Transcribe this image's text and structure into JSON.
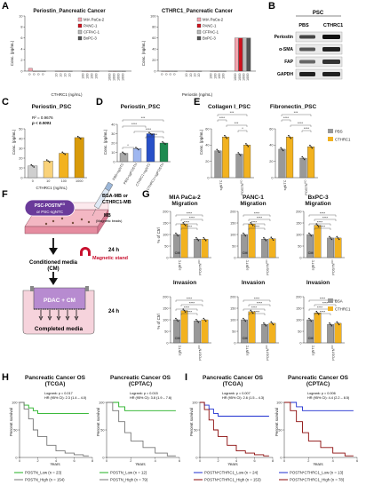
{
  "panel_labels": {
    "A": "A",
    "B": "B",
    "C": "C",
    "D": "D",
    "E": "E",
    "F": "F",
    "G": "G",
    "H": "H",
    "I": "I"
  },
  "A": {
    "left": {
      "title": "Periostin_Pancreatic Cancer",
      "xlabel": "CTHRC1 (ng/mL)",
      "ylabel": "Conc. (pg/mL)"
    },
    "right": {
      "title": "CTHRC1_Pancreatic Cancer",
      "xlabel": "Periostin (ng/mL)",
      "ylabel": "Conc. (ng/mL)"
    },
    "legend": [
      "MIA PaCa-2",
      "PANC-1",
      "CFPAC-1",
      "BxPC-3"
    ],
    "colors": [
      "#f4a6b0",
      "#d0111d",
      "#bbbbbb",
      "#555555"
    ]
  },
  "B": {
    "header": "PSC",
    "columns": [
      "PBS",
      "CTHRC1"
    ],
    "rows": [
      "Periostin",
      "α-SMA",
      "FAP",
      "GAPDH"
    ]
  },
  "C": {
    "title": "Periostin_PSC",
    "ylabel": "Conc. (pg/mL)",
    "xlabel": "CTHRC1 (ng/mL)",
    "r2": "R² = 0.9676",
    "p": "p < 0.0001"
  },
  "D": {
    "title": "Periostin_PSC",
    "ylabel": "Conc. (pg/mL)",
    "categories": [
      "PBS+sgNTC",
      "PBS+sgPOSTN",
      "CTHRC1+sgNTC",
      "CTHRC1+sgPOSTN"
    ],
    "colors": [
      "#a9a9a9",
      "#9fb7f0",
      "#2850c8",
      "#1e8a50"
    ]
  },
  "E": {
    "left_title": "Collagen I_PSC",
    "right_title": "Fibronectin_PSC",
    "ylabel": "Conc. (pg/mL)",
    "categories": [
      "sgNTC",
      "POSTN"
    ],
    "legend": [
      "PBS",
      "CTHRC1"
    ],
    "colors": [
      "#999999",
      "#f2b21f"
    ]
  },
  "F": {
    "psc_label": "PSC-POSTN",
    "psc_label2": "or PSC-sgNTC",
    "ko": "KO",
    "bsa": "BSA-MB or",
    "cthrc1": "CTHRC1-MB",
    "mb": "MB",
    "mb2": "(Magnetic beads)",
    "h1": "24 h",
    "magnet": "Magnetic stand",
    "cm": "Conditioned media",
    "cm2": "(CM)",
    "pdac": "PDAC + CM",
    "completed": "Completed media",
    "h2": "24 h"
  },
  "G": {
    "migration_titles": [
      "MIA PaCa-2\nMigration",
      "PANC-1\nMigration",
      "BxPC-3\nMigration"
    ],
    "titles_l1": [
      "MIA PaCa-2",
      "PANC-1",
      "BxPC-3"
    ],
    "titles_l2": [
      "Migration",
      "Migration",
      "Migration"
    ],
    "invasion_title": "Invasion",
    "ylabel": "% of Ctrl",
    "categories": [
      "sgNTC",
      "POSTN"
    ],
    "cm": "CM",
    "legend": [
      "BSA",
      "CTHRC1"
    ],
    "colors": [
      "#999999",
      "#f2b21f"
    ]
  },
  "H": {
    "left": {
      "title": "Pancreatic Cancer OS",
      "subtitle": "(TCGA)",
      "logrank": "Logrank: p = 0.017",
      "hr": "HR (95% CI): 2.3 (1.4 – 4.0)",
      "low": "POSTN_Low (n = 23)",
      "high": "POSTN_High (n = 154)"
    },
    "right": {
      "title": "Pancreatic Cancer OS",
      "subtitle": "(CPTAC)",
      "logrank": "Logrank: p = 0.015",
      "hr": "HR (95% CI): 3.8 (1.9 – 7.6)",
      "low": "POSTN_Low (n = 12)",
      "high": "POSTN_High (n = 79)"
    },
    "ylabel": "Percent survival",
    "xlabel": "Years",
    "colors": {
      "low": "#22b022",
      "high": "#777777"
    }
  },
  "I": {
    "left": {
      "title": "Pancreatic Cancer OS",
      "subtitle": "(TCGA)",
      "logrank": "Logrank: p = 0.007",
      "hr": "HR (95% CI): 2.6 (1.5 – 4.3)",
      "low": "POSTN*CTHRC1_Low (n = 24)",
      "high": "POSTN*CTHRC1_High (n = 153)"
    },
    "right": {
      "title": "Pancreatic Cancer OS",
      "subtitle": "(CPTAC)",
      "logrank": "Logrank: p = 0.006",
      "hr": "HR (95% CI): 4.4 (2.2 – 8.5)",
      "low": "POSTN*CTHRC1_Low (n = 13)",
      "high": "POSTN*CTHRC1_High (n = 78)"
    },
    "ylabel": "Percent survival",
    "xlabel": "Years",
    "colors": {
      "low": "#1f2fd0",
      "high": "#8b0a0a"
    }
  },
  "chart_data": [
    {
      "type": "bar",
      "panel": "A-left",
      "categories": [
        "0",
        "10",
        "100",
        "1000"
      ],
      "series": [
        {
          "name": "MIA PaCa-2",
          "values": [
            0.5,
            0,
            0,
            0
          ]
        },
        {
          "name": "PANC-1",
          "values": [
            0,
            0,
            0,
            0
          ]
        },
        {
          "name": "CFPAC-1",
          "values": [
            0,
            0,
            0,
            0
          ]
        },
        {
          "name": "BxPC-3",
          "values": [
            0,
            0,
            0,
            0
          ]
        }
      ],
      "ylim": [
        0,
        10
      ]
    },
    {
      "type": "bar",
      "panel": "A-right",
      "categories": [
        "0",
        "10",
        "100",
        "1000"
      ],
      "series": [
        {
          "name": "MIA PaCa-2",
          "values": [
            0,
            0,
            0,
            60
          ]
        },
        {
          "name": "PANC-1",
          "values": [
            0,
            0,
            0,
            60
          ]
        },
        {
          "name": "CFPAC-1",
          "values": [
            0,
            0,
            0,
            60
          ]
        },
        {
          "name": "BxPC-3",
          "values": [
            0,
            0,
            0,
            60
          ]
        }
      ],
      "ylim": [
        0,
        100
      ]
    },
    {
      "type": "bar",
      "panel": "C",
      "categories": [
        "0",
        "10",
        "100",
        "1000"
      ],
      "values": [
        12,
        17,
        25,
        41
      ],
      "ylim": [
        0,
        50
      ]
    },
    {
      "type": "bar",
      "panel": "D",
      "categories": [
        "PBS+sgNTC",
        "PBS+sgPOSTN",
        "CTHRC1+sgNTC",
        "CTHRC1+sgPOSTN"
      ],
      "values": [
        9,
        14,
        30,
        20
      ],
      "ylim": [
        0,
        40
      ]
    },
    {
      "type": "bar",
      "panel": "E-left",
      "categories": [
        "sgNTC",
        "POSTN"
      ],
      "series": [
        {
          "name": "PBS",
          "values": [
            33,
            29
          ]
        },
        {
          "name": "CTHRC1",
          "values": [
            50,
            40
          ]
        }
      ],
      "ylim": [
        0,
        60
      ]
    },
    {
      "type": "bar",
      "panel": "E-right",
      "categories": [
        "sgNTC",
        "POSTN"
      ],
      "series": [
        {
          "name": "PBS",
          "values": [
            35,
            24
          ]
        },
        {
          "name": "CTHRC1",
          "values": [
            50,
            38
          ]
        }
      ],
      "ylim": [
        0,
        60
      ]
    },
    {
      "type": "bar",
      "panel": "G-mia-mig",
      "categories": [
        "sgNTC",
        "POSTN"
      ],
      "series": [
        {
          "name": "BSA",
          "values": [
            100,
            80
          ]
        },
        {
          "name": "CTHRC1",
          "values": [
            145,
            80
          ]
        }
      ],
      "ylim": [
        0,
        200
      ]
    },
    {
      "type": "bar",
      "panel": "G-panc-mig",
      "categories": [
        "sgNTC",
        "POSTN"
      ],
      "series": [
        {
          "name": "BSA",
          "values": [
            100,
            80
          ]
        },
        {
          "name": "CTHRC1",
          "values": [
            145,
            82
          ]
        }
      ],
      "ylim": [
        0,
        200
      ]
    },
    {
      "type": "bar",
      "panel": "G-bx-mig",
      "categories": [
        "sgNTC",
        "POSTN"
      ],
      "series": [
        {
          "name": "BSA",
          "values": [
            100,
            85
          ]
        },
        {
          "name": "CTHRC1",
          "values": [
            140,
            85
          ]
        }
      ],
      "ylim": [
        0,
        200
      ]
    },
    {
      "type": "bar",
      "panel": "G-mia-inv",
      "categories": [
        "sgNTC",
        "POSTN"
      ],
      "series": [
        {
          "name": "BSA",
          "values": [
            100,
            95
          ]
        },
        {
          "name": "CTHRC1",
          "values": [
            140,
            100
          ]
        }
      ],
      "ylim": [
        0,
        200
      ]
    },
    {
      "type": "bar",
      "panel": "G-panc-inv",
      "categories": [
        "sgNTC",
        "POSTN"
      ],
      "series": [
        {
          "name": "BSA",
          "values": [
            100,
            80
          ]
        },
        {
          "name": "CTHRC1",
          "values": [
            135,
            85
          ]
        }
      ],
      "ylim": [
        0,
        200
      ]
    },
    {
      "type": "bar",
      "panel": "G-bx-inv",
      "categories": [
        "sgNTC",
        "POSTN"
      ],
      "series": [
        {
          "name": "BSA",
          "values": [
            100,
            80
          ]
        },
        {
          "name": "CTHRC1",
          "values": [
            130,
            85
          ]
        }
      ],
      "ylim": [
        0,
        200
      ]
    },
    {
      "type": "line",
      "panel": "H-left",
      "x": [
        0,
        0.5,
        1,
        1.5,
        2,
        3,
        4,
        5,
        6,
        7
      ],
      "series": [
        {
          "name": "POSTN_Low (n = 23)",
          "values": [
            100,
            95,
            90,
            85,
            80,
            80,
            80,
            80,
            80,
            80
          ]
        },
        {
          "name": "POSTN_High (n = 154)",
          "values": [
            100,
            88,
            70,
            50,
            38,
            22,
            12,
            8,
            5,
            3
          ]
        }
      ],
      "ylim": [
        0,
        100
      ],
      "xlim": [
        0,
        8
      ]
    },
    {
      "type": "line",
      "panel": "H-right",
      "x": [
        0,
        0.5,
        1,
        1.5,
        2,
        3,
        4,
        5
      ],
      "series": [
        {
          "name": "POSTN_Low (n = 12)",
          "values": [
            100,
            100,
            92,
            85,
            85,
            85,
            85,
            85
          ]
        },
        {
          "name": "POSTN_High (n = 79)",
          "values": [
            100,
            85,
            65,
            45,
            30,
            18,
            8,
            3
          ]
        }
      ],
      "ylim": [
        0,
        100
      ],
      "xlim": [
        0,
        6
      ]
    },
    {
      "type": "line",
      "panel": "I-left",
      "x": [
        0,
        0.5,
        1,
        1.5,
        2,
        3,
        4,
        5,
        6,
        7
      ],
      "series": [
        {
          "name": "POSTN*CTHRC1_Low (n = 24)",
          "values": [
            100,
            95,
            88,
            80,
            75,
            75,
            75,
            75,
            75,
            75
          ]
        },
        {
          "name": "POSTN*CTHRC1_High (n = 153)",
          "values": [
            100,
            87,
            68,
            50,
            38,
            22,
            12,
            8,
            5,
            3
          ]
        }
      ],
      "ylim": [
        0,
        100
      ],
      "xlim": [
        0,
        8
      ]
    },
    {
      "type": "line",
      "panel": "I-right",
      "x": [
        0,
        0.5,
        1,
        1.5,
        2,
        3,
        4,
        5
      ],
      "series": [
        {
          "name": "POSTN*CTHRC1_Low (n = 13)",
          "values": [
            100,
            100,
            92,
            85,
            85,
            85,
            85,
            85
          ]
        },
        {
          "name": "POSTN*CTHRC1_High (n = 78)",
          "values": [
            100,
            85,
            65,
            45,
            30,
            18,
            8,
            3
          ]
        }
      ],
      "ylim": [
        0,
        100
      ],
      "xlim": [
        0,
        6
      ]
    }
  ]
}
